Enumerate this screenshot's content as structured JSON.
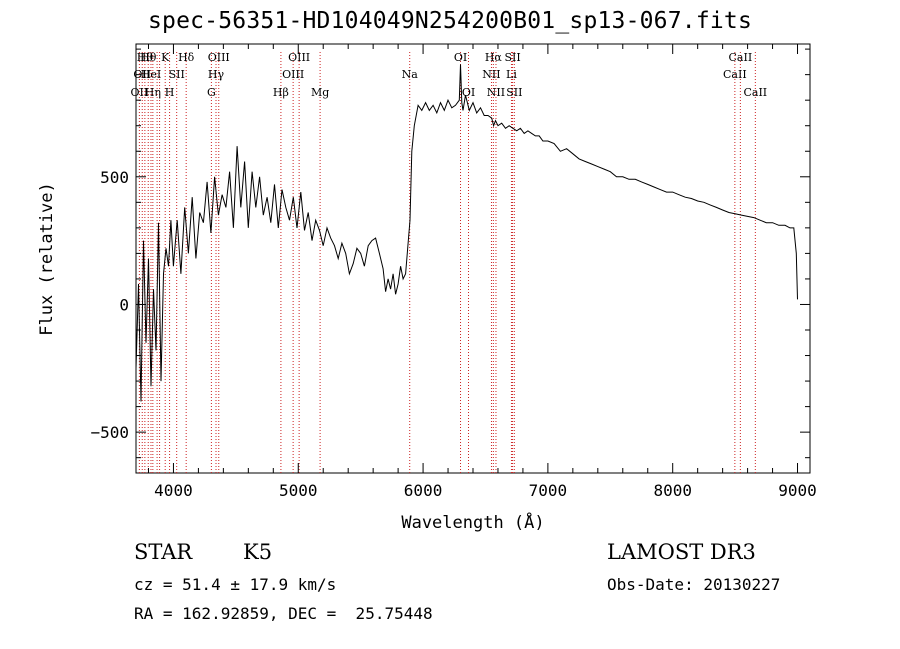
{
  "title": "spec-56351-HD104049N254200B01_sp13-067.fits",
  "info": {
    "class_label": "STAR",
    "subclass": "K5",
    "cz_text": "cz = 51.4 ± 17.9 km/s",
    "coords_text": "RA = 162.92859, DEC =  25.75448",
    "survey": "LAMOST DR3",
    "obs_date_text": "Obs-Date: 20130227"
  },
  "chart_data": {
    "type": "line",
    "title": "spec-56351-HD104049N254200B01_sp13-067.fits",
    "xlabel": "Wavelength (Å)",
    "ylabel": "Flux (relative)",
    "xlim": [
      3700,
      9100
    ],
    "ylim": [
      -660,
      1020
    ],
    "xticks": [
      4000,
      5000,
      6000,
      7000,
      8000,
      9000
    ],
    "yticks": [
      -500,
      0,
      500
    ],
    "ytick_labels": [
      "−500",
      "0",
      "500"
    ],
    "line_color": "#000000",
    "marker_color": "#cc2222",
    "series": [
      {
        "name": "spectrum",
        "x": [
          3700,
          3720,
          3740,
          3760,
          3780,
          3800,
          3820,
          3840,
          3860,
          3880,
          3900,
          3920,
          3940,
          3960,
          3980,
          4000,
          4030,
          4060,
          4090,
          4120,
          4150,
          4180,
          4210,
          4240,
          4270,
          4300,
          4330,
          4360,
          4390,
          4420,
          4450,
          4480,
          4510,
          4540,
          4570,
          4600,
          4630,
          4660,
          4690,
          4720,
          4750,
          4780,
          4810,
          4840,
          4870,
          4900,
          4930,
          4960,
          4990,
          5020,
          5050,
          5080,
          5110,
          5140,
          5170,
          5200,
          5230,
          5260,
          5290,
          5320,
          5350,
          5380,
          5410,
          5440,
          5470,
          5500,
          5530,
          5560,
          5590,
          5620,
          5650,
          5680,
          5700,
          5720,
          5740,
          5760,
          5780,
          5800,
          5820,
          5840,
          5860,
          5880,
          5895,
          5910,
          5930,
          5960,
          5990,
          6020,
          6050,
          6080,
          6110,
          6140,
          6170,
          6200,
          6230,
          6260,
          6290,
          6300,
          6310,
          6320,
          6340,
          6370,
          6400,
          6430,
          6460,
          6490,
          6520,
          6550,
          6565,
          6580,
          6600,
          6630,
          6660,
          6690,
          6720,
          6750,
          6780,
          6810,
          6840,
          6870,
          6900,
          6930,
          6960,
          7000,
          7050,
          7100,
          7150,
          7200,
          7250,
          7300,
          7350,
          7400,
          7450,
          7500,
          7550,
          7600,
          7650,
          7700,
          7750,
          7800,
          7850,
          7900,
          7950,
          8000,
          8050,
          8100,
          8150,
          8200,
          8250,
          8300,
          8350,
          8400,
          8450,
          8500,
          8550,
          8600,
          8650,
          8700,
          8750,
          8800,
          8850,
          8900,
          8940,
          8970,
          8990,
          9000
        ],
        "y": [
          -250,
          80,
          -380,
          250,
          -150,
          180,
          -320,
          60,
          -180,
          320,
          -300,
          120,
          220,
          150,
          330,
          150,
          330,
          120,
          380,
          200,
          420,
          180,
          360,
          320,
          480,
          280,
          500,
          350,
          430,
          380,
          520,
          300,
          620,
          380,
          560,
          300,
          520,
          380,
          500,
          350,
          420,
          320,
          470,
          300,
          450,
          380,
          330,
          420,
          300,
          440,
          290,
          360,
          250,
          330,
          290,
          230,
          300,
          260,
          230,
          180,
          240,
          200,
          120,
          160,
          220,
          200,
          150,
          230,
          250,
          260,
          200,
          140,
          50,
          100,
          60,
          120,
          40,
          80,
          150,
          100,
          120,
          240,
          330,
          600,
          700,
          780,
          760,
          790,
          760,
          780,
          750,
          790,
          760,
          800,
          770,
          780,
          800,
          940,
          790,
          760,
          820,
          760,
          790,
          750,
          770,
          740,
          740,
          730,
          700,
          720,
          700,
          710,
          690,
          700,
          690,
          680,
          690,
          670,
          680,
          670,
          660,
          660,
          640,
          640,
          630,
          600,
          610,
          590,
          570,
          560,
          550,
          540,
          530,
          520,
          500,
          500,
          490,
          490,
          480,
          470,
          460,
          450,
          440,
          440,
          430,
          420,
          415,
          405,
          400,
          390,
          380,
          370,
          360,
          355,
          350,
          345,
          340,
          330,
          320,
          320,
          310,
          310,
          300,
          300,
          200,
          20
        ]
      }
    ],
    "lines": [
      {
        "x": 3727,
        "label": "OII",
        "row": 2
      },
      {
        "x": 3750,
        "label": "OII",
        "row": 1
      },
      {
        "x": 3771,
        "label": "Hθ",
        "row": 0
      },
      {
        "x": 3798,
        "label": "Hθ",
        "row": 0
      },
      {
        "x": 3820,
        "label": "HeI",
        "row": 1
      },
      {
        "x": 3835,
        "label": "Hη",
        "row": 2
      },
      {
        "x": 3869,
        "label": "",
        "row": 1
      },
      {
        "x": 3889,
        "label": "",
        "row": 2
      },
      {
        "x": 3934,
        "label": "K",
        "row": 0
      },
      {
        "x": 3969,
        "label": "H",
        "row": 2
      },
      {
        "x": 4026,
        "label": "SII",
        "row": 1
      },
      {
        "x": 4102,
        "label": "Hδ",
        "row": 0
      },
      {
        "x": 4304,
        "label": "G",
        "row": 2
      },
      {
        "x": 4341,
        "label": "Hγ",
        "row": 1
      },
      {
        "x": 4363,
        "label": "OIII",
        "row": 0
      },
      {
        "x": 4861,
        "label": "Hβ",
        "row": 2
      },
      {
        "x": 4959,
        "label": "OIII",
        "row": 1
      },
      {
        "x": 5007,
        "label": "OIII",
        "row": 0
      },
      {
        "x": 5175,
        "label": "Mg",
        "row": 2
      },
      {
        "x": 5893,
        "label": "Na",
        "row": 1
      },
      {
        "x": 6300,
        "label": "OI",
        "row": 0
      },
      {
        "x": 6364,
        "label": "OI",
        "row": 2
      },
      {
        "x": 6548,
        "label": "NII",
        "row": 1
      },
      {
        "x": 6563,
        "label": "Hα",
        "row": 0
      },
      {
        "x": 6584,
        "label": "NII",
        "row": 2
      },
      {
        "x": 6708,
        "label": "Li",
        "row": 1
      },
      {
        "x": 6717,
        "label": "SII",
        "row": 0
      },
      {
        "x": 6731,
        "label": "SII",
        "row": 2
      },
      {
        "x": 8498,
        "label": "CaII",
        "row": 1
      },
      {
        "x": 8542,
        "label": "CaII",
        "row": 0
      },
      {
        "x": 8662,
        "label": "CaII",
        "row": 2
      }
    ]
  }
}
